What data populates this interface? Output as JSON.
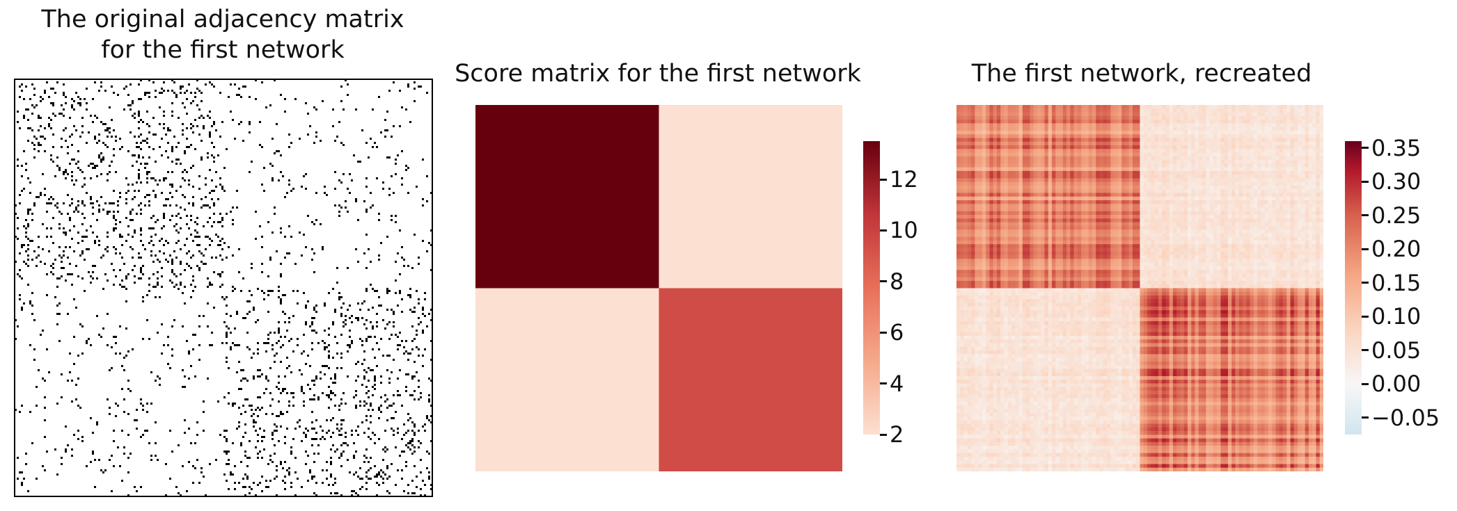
{
  "chart_data": [
    {
      "type": "heatmap",
      "title": "The original adjacency matrix\nfor the first network",
      "title_lines": [
        "The original adjacency matrix",
        "for the first network"
      ],
      "colormap": "binary",
      "colors": {
        "edge": "#000000",
        "no_edge": "#ffffff"
      },
      "n_nodes": 200,
      "blocks": [
        {
          "rows": "first half",
          "cols": "first half",
          "density": "high"
        },
        {
          "rows": "first half",
          "cols": "second half",
          "density": "low"
        },
        {
          "rows": "second half",
          "cols": "first half",
          "density": "low"
        },
        {
          "rows": "second half",
          "cols": "second half",
          "density": "high"
        }
      ],
      "frame": true
    },
    {
      "type": "heatmap",
      "title": "Score matrix for the first network",
      "colormap": "Reds",
      "matrix": [
        [
          13.5,
          2.0
        ],
        [
          2.0,
          9.5
        ]
      ],
      "colors": {
        "high": "#67000d",
        "mid": "#c0353a",
        "low": "#fce0d2"
      },
      "colorbar": {
        "ticks": [
          2,
          4,
          6,
          8,
          10,
          12
        ],
        "range": [
          2,
          13.5
        ]
      }
    },
    {
      "type": "heatmap",
      "title": "The first network, recreated",
      "colormap": "RdBu_r",
      "blocks": [
        {
          "block": "top-left",
          "approx_value": 0.2
        },
        {
          "block": "top-right",
          "approx_value": 0.05
        },
        {
          "block": "bottom-left",
          "approx_value": 0.05
        },
        {
          "block": "bottom-right",
          "approx_value": 0.22
        }
      ],
      "colorbar": {
        "ticks": [
          -0.05,
          0.0,
          0.05,
          0.1,
          0.15,
          0.2,
          0.25,
          0.3,
          0.35
        ],
        "tick_labels": [
          "−0.05",
          "0.00",
          "0.05",
          "0.10",
          "0.15",
          "0.20",
          "0.25",
          "0.30",
          "0.35"
        ],
        "range": [
          -0.075,
          0.36
        ]
      }
    }
  ]
}
